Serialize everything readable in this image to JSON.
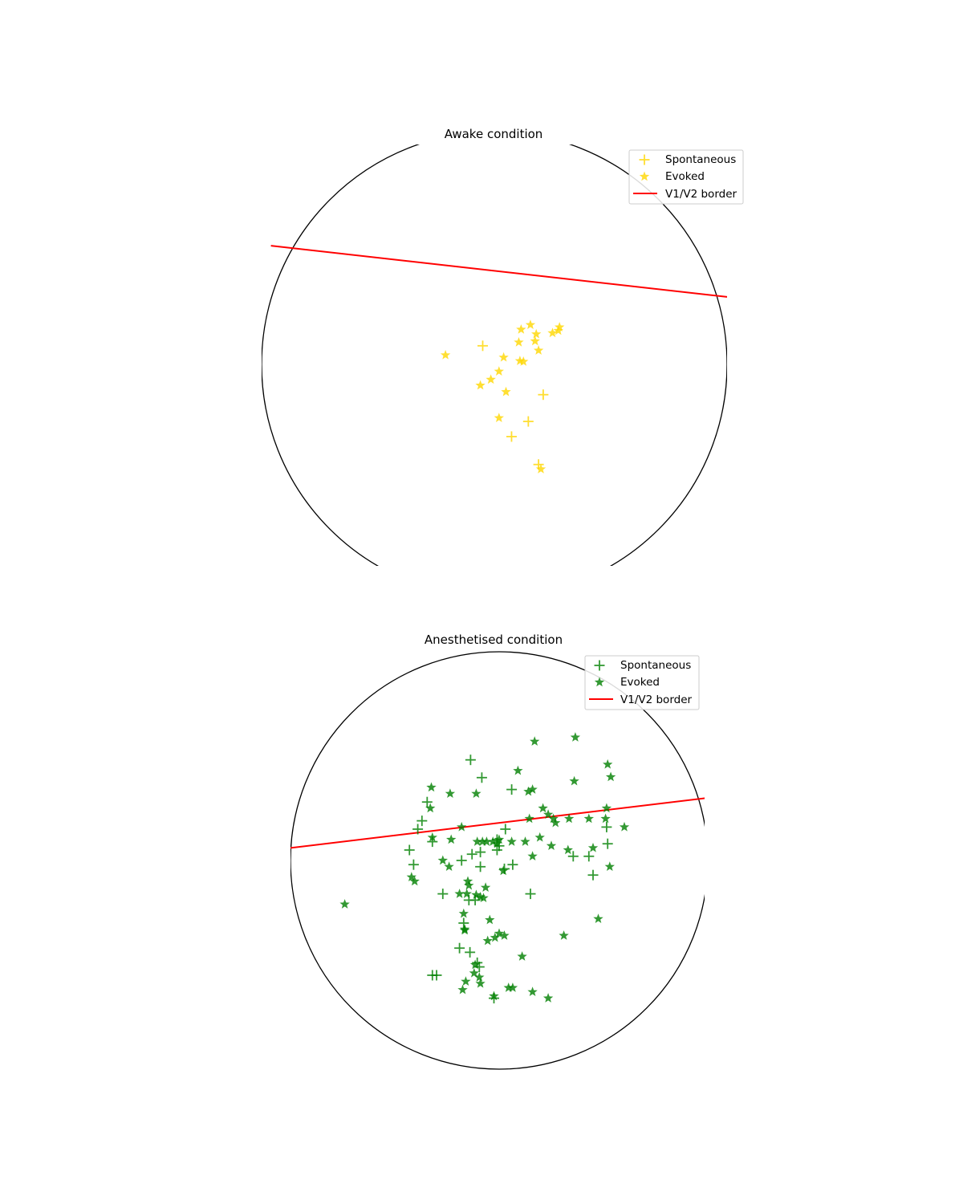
{
  "chart_data": [
    {
      "type": "scatter",
      "title": "Awake condition",
      "xlim": [
        -1,
        1
      ],
      "ylim": [
        -1,
        1
      ],
      "grid": false,
      "legend_placement": "top-right",
      "boundary": "circle",
      "colors": {
        "points": "#FFD700",
        "border_line": "#FF0000",
        "circle": "#000000"
      },
      "series": [
        {
          "name": "Spontaneous",
          "marker": "plus",
          "points": [
            [
              -0.05,
              0.08
            ],
            [
              0.21,
              -0.13
            ],
            [
              0.146,
              -0.245
            ],
            [
              0.074,
              -0.31
            ],
            [
              0.19,
              -0.43
            ]
          ]
        },
        {
          "name": "Evoked",
          "marker": "star",
          "points": [
            [
              -0.21,
              0.04
            ],
            [
              -0.06,
              -0.09
            ],
            [
              -0.015,
              -0.065
            ],
            [
              0.02,
              -0.03
            ],
            [
              0.04,
              0.03
            ],
            [
              0.11,
              0.015
            ],
            [
              0.125,
              0.012
            ],
            [
              0.105,
              0.095
            ],
            [
              0.115,
              0.15
            ],
            [
              0.155,
              0.17
            ],
            [
              0.18,
              0.13
            ],
            [
              0.175,
              0.1
            ],
            [
              0.19,
              0.06
            ],
            [
              0.275,
              0.145
            ],
            [
              0.28,
              0.16
            ],
            [
              0.25,
              0.135
            ],
            [
              0.05,
              -0.118
            ],
            [
              0.02,
              -0.23
            ],
            [
              0.2,
              -0.45
            ]
          ]
        },
        {
          "name": "V1/V2 border",
          "marker": "line",
          "points": [
            [
              -0.96,
              0.51
            ],
            [
              1.0,
              0.29
            ]
          ]
        }
      ]
    },
    {
      "type": "scatter",
      "title": "Anesthetised condition",
      "xlim": [
        -1,
        1
      ],
      "ylim": [
        -1,
        1
      ],
      "grid": false,
      "legend_placement": "top-right",
      "boundary": "circle",
      "colors": {
        "points": "#008000",
        "border_line": "#FF0000",
        "circle": "#000000"
      },
      "series": [
        {
          "name": "Spontaneous",
          "marker": "plus",
          "points": [
            [
              -0.137,
              0.482
            ],
            [
              -0.083,
              0.397
            ],
            [
              0.06,
              0.34
            ],
            [
              -0.345,
              0.28
            ],
            [
              -0.37,
              0.19
            ],
            [
              -0.39,
              0.15
            ],
            [
              -0.32,
              0.09
            ],
            [
              -0.43,
              0.05
            ],
            [
              -0.41,
              -0.02
            ],
            [
              -0.13,
              0.03
            ],
            [
              -0.18,
              0.0
            ],
            [
              0.03,
              0.15
            ],
            [
              -0.01,
              0.1
            ],
            [
              -0.09,
              0.04
            ],
            [
              -0.01,
              0.05
            ],
            [
              0.0,
              0.07
            ],
            [
              -0.09,
              -0.03
            ],
            [
              0.025,
              -0.04
            ],
            [
              0.065,
              -0.02
            ],
            [
              0.15,
              -0.16
            ],
            [
              -0.27,
              -0.16
            ],
            [
              -0.145,
              -0.19
            ],
            [
              -0.115,
              -0.19
            ],
            [
              -0.17,
              -0.3
            ],
            [
              0.43,
              0.02
            ],
            [
              0.355,
              0.02
            ],
            [
              0.52,
              0.08
            ],
            [
              0.45,
              -0.07
            ],
            [
              0.515,
              0.16
            ],
            [
              -0.19,
              -0.42
            ],
            [
              -0.14,
              -0.44
            ],
            [
              -0.105,
              -0.49
            ],
            [
              -0.095,
              -0.51
            ],
            [
              -0.32,
              -0.55
            ],
            [
              -0.3,
              -0.55
            ],
            [
              -0.025,
              -0.66
            ]
          ]
        },
        {
          "name": "Evoked",
          "marker": "star",
          "points": [
            [
              0.17,
              0.57
            ],
            [
              0.365,
              0.59
            ],
            [
              0.52,
              0.46
            ],
            [
              0.535,
              0.4
            ],
            [
              0.36,
              0.38
            ],
            [
              0.09,
              0.43
            ],
            [
              0.16,
              0.34
            ],
            [
              0.14,
              0.33
            ],
            [
              -0.325,
              0.35
            ],
            [
              -0.235,
              0.32
            ],
            [
              -0.11,
              0.32
            ],
            [
              -0.33,
              0.25
            ],
            [
              0.21,
              0.25
            ],
            [
              0.235,
              0.22
            ],
            [
              0.26,
              0.2
            ],
            [
              0.27,
              0.18
            ],
            [
              0.335,
              0.2
            ],
            [
              0.43,
              0.2
            ],
            [
              0.51,
              0.2
            ],
            [
              0.515,
              0.25
            ],
            [
              0.145,
              0.2
            ],
            [
              0.6,
              0.16
            ],
            [
              -0.18,
              0.16
            ],
            [
              -0.105,
              0.09
            ],
            [
              -0.08,
              0.09
            ],
            [
              -0.06,
              0.09
            ],
            [
              -0.03,
              0.09
            ],
            [
              -0.01,
              0.08
            ],
            [
              0.0,
              0.1
            ],
            [
              0.06,
              0.09
            ],
            [
              0.125,
              0.09
            ],
            [
              0.25,
              0.07
            ],
            [
              0.195,
              0.11
            ],
            [
              0.33,
              0.05
            ],
            [
              0.45,
              0.06
            ],
            [
              0.53,
              -0.03
            ],
            [
              -0.32,
              0.11
            ],
            [
              -0.23,
              0.1
            ],
            [
              -0.27,
              0.0
            ],
            [
              -0.24,
              -0.03
            ],
            [
              -0.42,
              -0.08
            ],
            [
              -0.405,
              -0.1
            ],
            [
              -0.15,
              -0.1
            ],
            [
              -0.145,
              -0.12
            ],
            [
              -0.065,
              -0.13
            ],
            [
              0.02,
              -0.05
            ],
            [
              0.16,
              0.02
            ],
            [
              -0.155,
              -0.16
            ],
            [
              -0.11,
              -0.165
            ],
            [
              -0.09,
              -0.175
            ],
            [
              -0.075,
              -0.18
            ],
            [
              -0.19,
              -0.16
            ],
            [
              -0.17,
              -0.255
            ],
            [
              -0.045,
              -0.285
            ],
            [
              -0.165,
              -0.33
            ],
            [
              -0.165,
              -0.335
            ],
            [
              0.0,
              -0.35
            ],
            [
              0.025,
              -0.36
            ],
            [
              -0.02,
              -0.37
            ],
            [
              0.11,
              -0.46
            ],
            [
              -0.12,
              -0.54
            ],
            [
              -0.115,
              -0.5
            ],
            [
              -0.095,
              -0.56
            ],
            [
              -0.09,
              -0.59
            ],
            [
              -0.16,
              -0.58
            ],
            [
              -0.175,
              -0.62
            ],
            [
              -0.025,
              -0.65
            ],
            [
              0.045,
              -0.61
            ],
            [
              0.065,
              -0.61
            ],
            [
              0.16,
              -0.63
            ],
            [
              0.235,
              -0.66
            ],
            [
              0.475,
              -0.28
            ],
            [
              0.31,
              -0.36
            ],
            [
              -0.74,
              -0.21
            ],
            [
              -0.055,
              -0.385
            ]
          ]
        },
        {
          "name": "V1/V2 border",
          "marker": "line",
          "points": [
            [
              -1.0,
              0.06
            ],
            [
              1.0,
              0.3
            ]
          ]
        }
      ]
    }
  ]
}
